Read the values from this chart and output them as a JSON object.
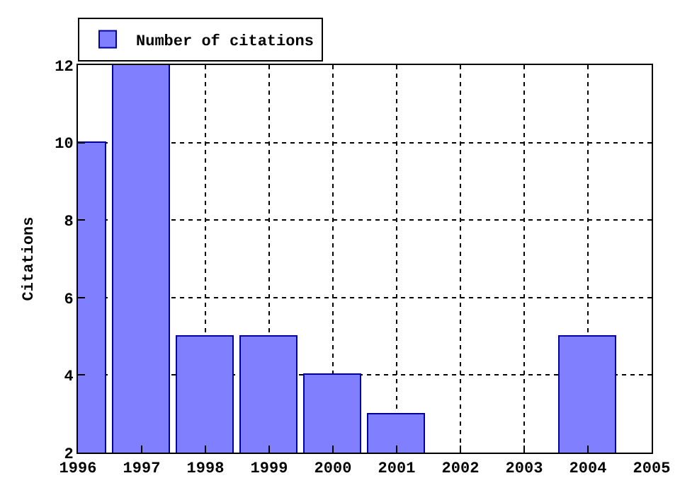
{
  "chart_data": {
    "type": "bar",
    "ylabel": "Citations",
    "x": [
      1996,
      1997,
      1998,
      1999,
      2000,
      2001,
      2004
    ],
    "series": [
      {
        "name": "Number of citations",
        "color": "#8080ff",
        "values": [
          10,
          12,
          5,
          5,
          4,
          3,
          5
        ]
      }
    ],
    "xlim": [
      1996,
      2005
    ],
    "xticks": [
      1996,
      1997,
      1998,
      1999,
      2000,
      2001,
      2002,
      2003,
      2004,
      2005
    ],
    "ylim": [
      2,
      12
    ],
    "yticks": [
      2,
      4,
      6,
      8,
      10,
      12
    ],
    "grid": true,
    "legend": "top left"
  }
}
